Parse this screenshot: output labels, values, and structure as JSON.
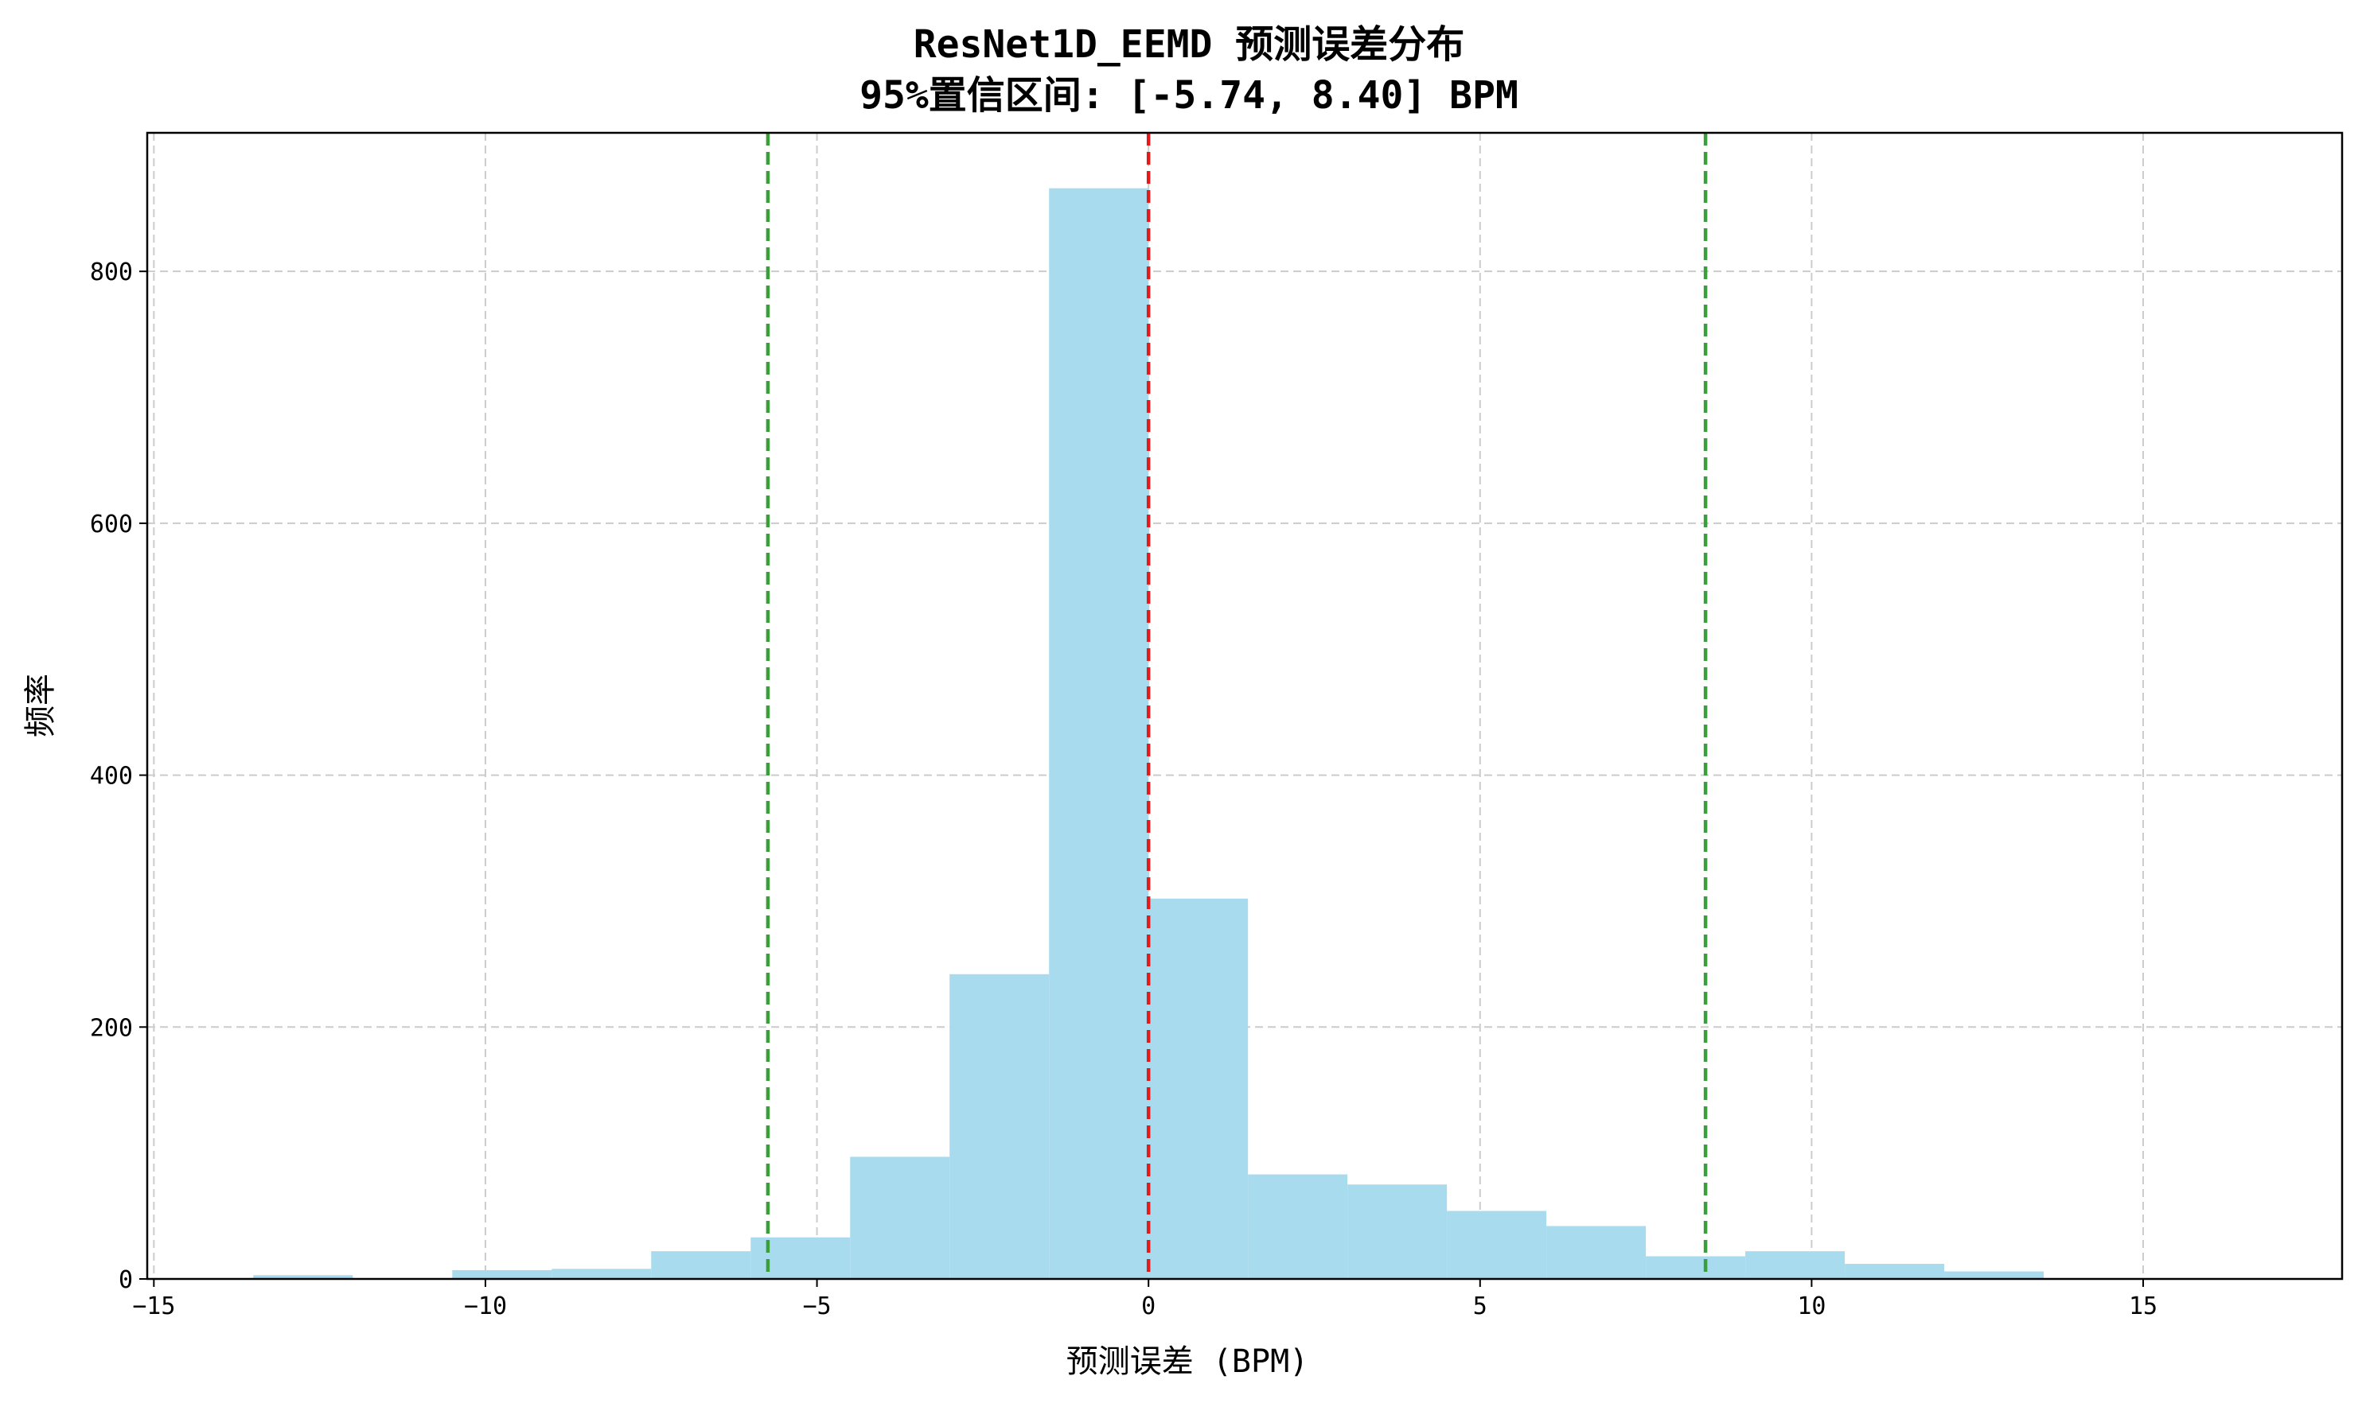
{
  "chart_data": {
    "type": "bar",
    "title": "ResNet1D_EEMD 预测误差分布",
    "subtitle": "95%置信区间: [-5.74, 8.40] BPM",
    "xlabel": "预测误差 (BPM)",
    "ylabel": "频率",
    "xlim": [
      -15.1,
      18.0
    ],
    "ylim": [
      0,
      910
    ],
    "xticks": [
      -15,
      -10,
      -5,
      0,
      5,
      10,
      15
    ],
    "xtick_labels": [
      "−15",
      "−10",
      "−5",
      "0",
      "5",
      "10",
      "15"
    ],
    "yticks": [
      0,
      200,
      400,
      600,
      800
    ],
    "ytick_labels": [
      "0",
      "200",
      "400",
      "600",
      "800"
    ],
    "grid": true,
    "bins": [
      {
        "x0": -13.5,
        "x1": -12.0,
        "count": 3
      },
      {
        "x0": -12.0,
        "x1": -10.5,
        "count": 0
      },
      {
        "x0": -10.5,
        "x1": -9.0,
        "count": 7
      },
      {
        "x0": -9.0,
        "x1": -7.5,
        "count": 8
      },
      {
        "x0": -7.5,
        "x1": -6.0,
        "count": 22
      },
      {
        "x0": -6.0,
        "x1": -4.5,
        "count": 33
      },
      {
        "x0": -4.5,
        "x1": -3.0,
        "count": 97
      },
      {
        "x0": -3.0,
        "x1": -1.5,
        "count": 242
      },
      {
        "x0": -1.5,
        "x1": 0.0,
        "count": 866
      },
      {
        "x0": 0.0,
        "x1": 1.5,
        "count": 302
      },
      {
        "x0": 1.5,
        "x1": 3.0,
        "count": 83
      },
      {
        "x0": 3.0,
        "x1": 4.5,
        "count": 75
      },
      {
        "x0": 4.5,
        "x1": 6.0,
        "count": 54
      },
      {
        "x0": 6.0,
        "x1": 7.5,
        "count": 42
      },
      {
        "x0": 7.5,
        "x1": 9.0,
        "count": 18
      },
      {
        "x0": 9.0,
        "x1": 10.5,
        "count": 22
      },
      {
        "x0": 10.5,
        "x1": 12.0,
        "count": 12
      },
      {
        "x0": 12.0,
        "x1": 13.5,
        "count": 6
      }
    ],
    "reference_lines": [
      {
        "value": 0,
        "color": "#e31a1c"
      },
      {
        "value": -5.74,
        "color": "#3a9e3a"
      },
      {
        "value": 8.4,
        "color": "#3a9e3a"
      }
    ],
    "bar_color": "#a8dbee",
    "grid_color": "#cccccc"
  }
}
